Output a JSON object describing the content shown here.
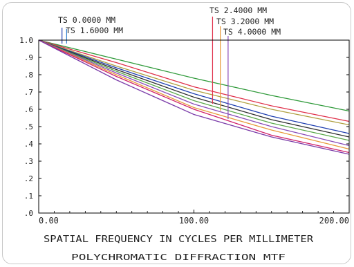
{
  "chart_data": {
    "type": "line",
    "title": "POLYCHROMATIC DIFFRACTION MTF",
    "xlabel": "SPATIAL FREQUENCY IN CYCLES PER MILLIMETER",
    "ylabel": "",
    "xlim": [
      0,
      200
    ],
    "ylim": [
      0,
      1.0
    ],
    "x_tick_labels": [
      "0.00",
      "100.00",
      "200.00"
    ],
    "x_ticks": [
      0,
      100,
      200
    ],
    "y_tick_labels": [
      ".0",
      ".1",
      ".2",
      ".3",
      ".4",
      ".5",
      ".6",
      ".7",
      ".8",
      ".9",
      "1.0"
    ],
    "y_ticks": [
      0,
      0.1,
      0.2,
      0.3,
      0.4,
      0.5,
      0.6,
      0.7,
      0.8,
      0.9,
      1.0
    ],
    "grid": false,
    "legend_labels": [
      {
        "text": "TS 0.0000 MM",
        "marker_color": "#1f3fb0",
        "marker_x": 15
      },
      {
        "text": "TS 1.6000 MM",
        "marker_color": "#2f7fd0",
        "marker_x": 18
      },
      {
        "text": "TS 2.4000 MM",
        "marker_color": "#e0304a",
        "marker_x": 112
      },
      {
        "text": "TS 3.2000 MM",
        "marker_color": "#e89a3a",
        "marker_x": 117
      },
      {
        "text": "TS 4.0000 MM",
        "marker_color": "#8a4bb8",
        "marker_x": 122
      }
    ],
    "series": [
      {
        "color": "#2f9a3a",
        "x": [
          0,
          50,
          100,
          150,
          200
        ],
        "y": [
          1.0,
          0.89,
          0.78,
          0.68,
          0.59
        ]
      },
      {
        "color": "#e0304a",
        "x": [
          0,
          50,
          100,
          150,
          200
        ],
        "y": [
          1.0,
          0.87,
          0.73,
          0.62,
          0.53
        ]
      },
      {
        "color": "#b0a040",
        "x": [
          0,
          50,
          100,
          150,
          200
        ],
        "y": [
          1.0,
          0.85,
          0.71,
          0.6,
          0.51
        ]
      },
      {
        "color": "#1f3fb0",
        "x": [
          0,
          50,
          100,
          150,
          200
        ],
        "y": [
          1.0,
          0.84,
          0.69,
          0.56,
          0.46
        ]
      },
      {
        "color": "#2f2f2f",
        "x": [
          0,
          50,
          100,
          150,
          200
        ],
        "y": [
          1.0,
          0.83,
          0.67,
          0.54,
          0.44
        ]
      },
      {
        "color": "#5aa84a",
        "x": [
          0,
          50,
          100,
          150,
          200
        ],
        "y": [
          1.0,
          0.82,
          0.65,
          0.52,
          0.42
        ]
      },
      {
        "color": "#8a4bb8",
        "x": [
          0,
          50,
          100,
          150,
          200
        ],
        "y": [
          1.0,
          0.81,
          0.63,
          0.5,
          0.39
        ]
      },
      {
        "color": "#e89a3a",
        "x": [
          0,
          50,
          100,
          150,
          200
        ],
        "y": [
          1.0,
          0.8,
          0.61,
          0.48,
          0.37
        ]
      },
      {
        "color": "#d0206a",
        "x": [
          0,
          50,
          100,
          150,
          200
        ],
        "y": [
          1.0,
          0.79,
          0.6,
          0.45,
          0.35
        ]
      },
      {
        "color": "#7a3aa8",
        "x": [
          0,
          50,
          100,
          150,
          200
        ],
        "y": [
          1.0,
          0.77,
          0.57,
          0.44,
          0.34
        ]
      }
    ]
  }
}
